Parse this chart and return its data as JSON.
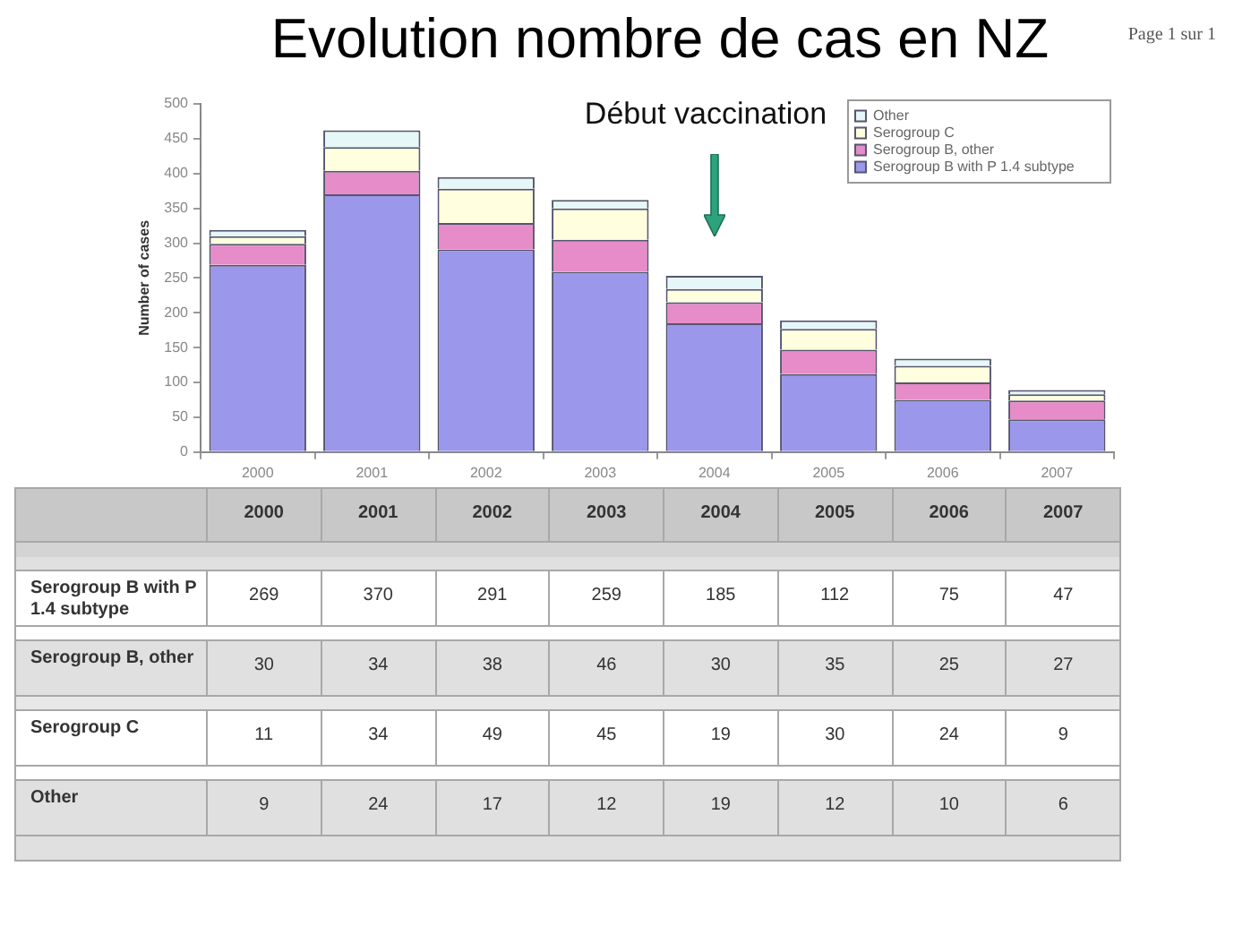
{
  "chart_data": {
    "type": "bar",
    "title": "Evolution nombre de cas en NZ",
    "ylabel": "Number of cases",
    "categories": [
      "2000",
      "2001",
      "2002",
      "2003",
      "2004",
      "2005",
      "2006",
      "2007"
    ],
    "series": [
      {
        "name": "Serogroup B with P 1.4 subtype",
        "color": "#9b97ea",
        "values": [
          269,
          370,
          291,
          259,
          185,
          112,
          75,
          47
        ]
      },
      {
        "name": "Serogroup B, other",
        "color": "#e68cc8",
        "values": [
          30,
          34,
          38,
          46,
          30,
          35,
          25,
          27
        ]
      },
      {
        "name": "Serogroup C",
        "color": "#ffffdf",
        "values": [
          11,
          34,
          49,
          45,
          19,
          30,
          24,
          9
        ]
      },
      {
        "name": "Other",
        "color": "#e6f7f7",
        "values": [
          9,
          24,
          17,
          12,
          19,
          12,
          10,
          6
        ]
      }
    ],
    "stacked": true,
    "ylim": [
      0,
      500
    ],
    "yticks": [
      0,
      50,
      100,
      150,
      200,
      250,
      300,
      350,
      400,
      450,
      500
    ],
    "grid": false,
    "legend": "top right",
    "data_labels": true,
    "annotations": [
      "Début vaccination",
      "Page 1 sur 1"
    ]
  }
}
